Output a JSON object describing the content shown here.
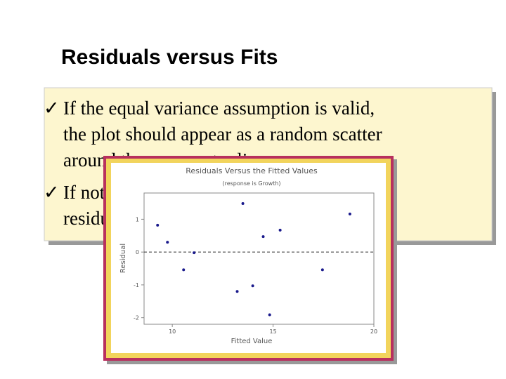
{
  "title": "Residuals versus Fits",
  "bullets": [
    {
      "marker": "✓",
      "lines": [
        "If the equal variance assumption is valid,",
        "the plot should appear as a random scatter",
        "around the zero center line"
      ]
    },
    {
      "marker": "✓",
      "lines": [
        "If not, a pattern will be visible in the",
        "residuals"
      ]
    }
  ],
  "chart_data": {
    "type": "scatter",
    "title": "Residuals Versus the Fitted Values",
    "subtitle": "(response is Growth)",
    "x_label": "Fitted Value",
    "y_label": "Residual",
    "x": [
      9.27,
      9.76,
      10.56,
      11.08,
      13.22,
      13.5,
      13.99,
      14.51,
      14.83,
      15.35,
      17.45,
      18.81
    ],
    "values": [
      0.82,
      0.3,
      -0.54,
      -0.02,
      -1.2,
      1.48,
      -1.03,
      0.47,
      -1.91,
      0.67,
      -0.54,
      1.16
    ],
    "color": "#1a1a8c",
    "xlim": [
      8.6,
      20
    ],
    "ylim": [
      -2.2,
      1.8
    ],
    "xticks": [
      10,
      15,
      20
    ],
    "yticks": [
      -2,
      -1,
      0,
      1
    ],
    "reference_line": 0
  }
}
